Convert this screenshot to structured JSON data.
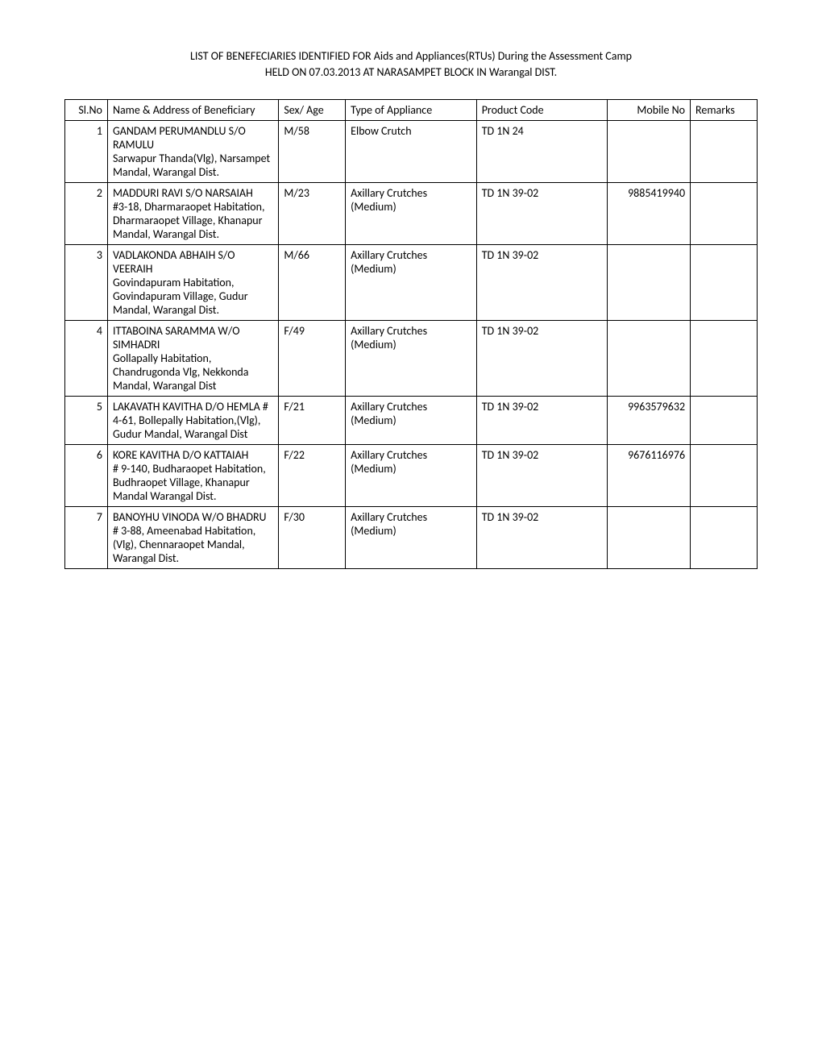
{
  "title_line1": "LIST OF BENEFECIARIES IDENTIFIED FOR Aids and Appliances(RTUs) During the Assessment Camp",
  "title_line2": "HELD ON 07.03.2013 AT NARASAMPET  BLOCK IN Warangal  DIST.",
  "table": {
    "headers": {
      "slno": "Sl.No",
      "name": "Name & Address of Beneficiary",
      "sex": "Sex/ Age",
      "type": "Type of Appliance",
      "code": "Product Code",
      "mobile": "Mobile No",
      "remarks": "Remarks"
    },
    "rows": [
      {
        "slno": "1",
        "name": "GANDAM PERUMANDLU S/O RAMULU\nSarwapur Thanda(Vlg), Narsampet Mandal, Warangal Dist.",
        "sex": "M/58",
        "type": "Elbow Crutch",
        "code": "TD 1N 24",
        "mobile": "",
        "remarks": ""
      },
      {
        "slno": "2",
        "name": "MADDURI RAVI S/O NARSAIAH\n#3-18, Dharmaraopet Habitation, Dharmaraopet Village, Khanapur Mandal, Warangal Dist.",
        "sex": "M/23",
        "type": "Axillary Crutches (Medium)",
        "code": "TD 1N 39-02",
        "mobile": "9885419940",
        "remarks": ""
      },
      {
        "slno": "3",
        "name": "VADLAKONDA ABHAIH S/O VEERAIH\nGovindapuram Habitation, Govindapuram Village, Gudur Mandal, Warangal Dist.",
        "sex": "M/66",
        "type": "Axillary Crutches (Medium)",
        "code": "TD 1N 39-02",
        "mobile": "",
        "remarks": ""
      },
      {
        "slno": "4",
        "name": "ITTABOINA SARAMMA W/O SIMHADRI\nGollapally Habitation, Chandrugonda Vlg, Nekkonda Mandal, Warangal Dist",
        "sex": "F/49",
        "type": "Axillary Crutches (Medium)",
        "code": "TD 1N 39-02",
        "mobile": "",
        "remarks": ""
      },
      {
        "slno": "5",
        "name": "LAKAVATH KAVITHA D/O HEMLA                       # 4-61, Bollepally Habitation,(Vlg), Gudur Mandal, Warangal Dist",
        "sex": "F/21",
        "type": "Axillary Crutches (Medium)",
        "code": "TD 1N 39-02",
        "mobile": "9963579632",
        "remarks": ""
      },
      {
        "slno": "6",
        "name": "KORE KAVITHA D/O KATTAIAH\n# 9-140, Budharaopet Habitation, Budhraopet Village, Khanapur Mandal Warangal Dist.",
        "sex": "F/22",
        "type": "Axillary Crutches (Medium)",
        "code": "TD 1N 39-02",
        "mobile": "9676116976",
        "remarks": ""
      },
      {
        "slno": "7",
        "name": "BANOYHU VINODA W/O BHADRU\n# 3-88, Ameenabad Habitation, (Vlg), Chennaraopet Mandal, Warangal Dist.",
        "sex": "F/30",
        "type": "Axillary Crutches (Medium)",
        "code": "TD 1N 39-02",
        "mobile": "",
        "remarks": ""
      }
    ]
  }
}
